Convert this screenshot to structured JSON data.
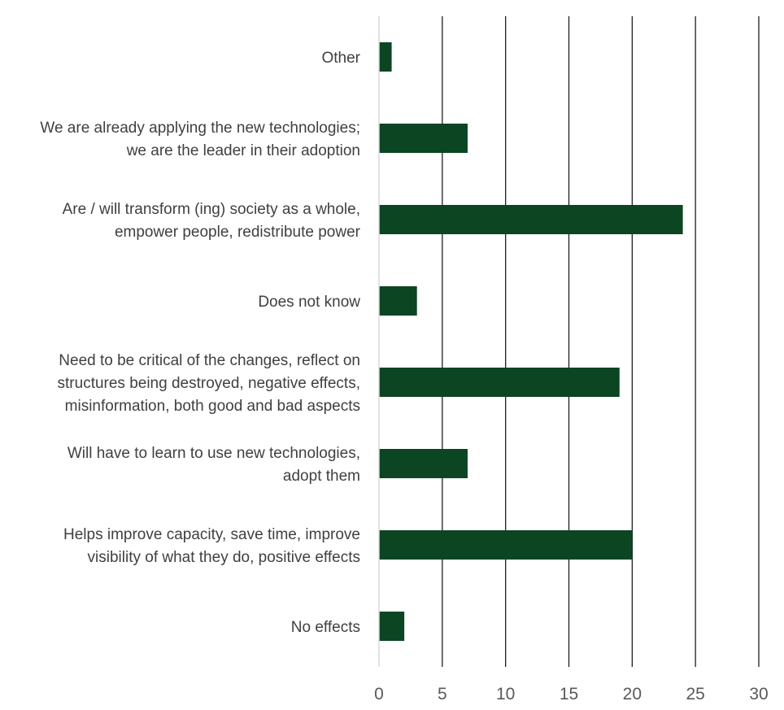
{
  "chart_data": {
    "type": "bar",
    "orientation": "horizontal",
    "title": "",
    "xlabel": "",
    "ylabel": "",
    "xlim": [
      0,
      30
    ],
    "x_ticks": [
      0,
      5,
      10,
      15,
      20,
      25,
      30
    ],
    "grid": true,
    "legend": "none",
    "bar_color": "#0b4522",
    "categories": [
      [
        "Other"
      ],
      [
        "We are already applying the new technologies;",
        "we are the leader in their adoption"
      ],
      [
        "Are / will transform (ing) society as a whole,",
        "empower people, redistribute power"
      ],
      [
        "Does not know"
      ],
      [
        "Need to be critical of the changes, reflect on",
        "structures being destroyed, negative effects,",
        "misinformation, both good and bad aspects"
      ],
      [
        "Will have to learn to use new technologies,",
        "adopt them"
      ],
      [
        "Helps improve capacity, save time, improve",
        "visibility of what they do, positive effects"
      ],
      [
        "No effects"
      ]
    ],
    "values": [
      1,
      7,
      24,
      3,
      19,
      7,
      20,
      2
    ]
  }
}
